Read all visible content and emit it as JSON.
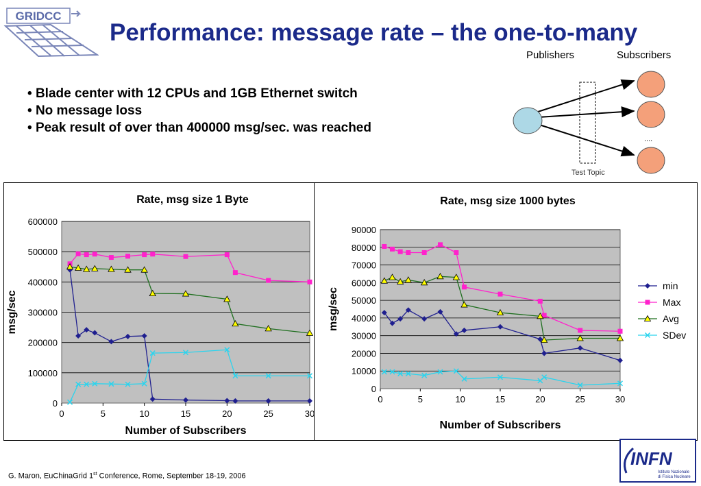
{
  "slide": {
    "title": "Performance: message rate – the one-to-many",
    "bullets": [
      "Blade center with 12 CPUs and 1GB Ethernet switch",
      "No message loss",
      "Peak result of over than 400000 msg/sec. was reached"
    ],
    "footer_pre": "G. Maron, EuChinaGrid 1",
    "footer_sup": "st",
    "footer_post": " Conference, Rome, September 18-19, 2006",
    "logo_text": "GRIDCC",
    "infn_logo": {
      "text": "INFN",
      "sub1": "Istituto Nazionale",
      "sub2": "di Fisica Nucleare"
    }
  },
  "diagram": {
    "publishers_label": "Publishers",
    "subscribers_label": "Subscribers",
    "topic_label": "Test Topic",
    "ellipsis": "....",
    "publisher_color": "#add8e6",
    "subscriber_color": "#f4a07a"
  },
  "colors": {
    "min": "#1f1f8f",
    "max": "#ff22cc",
    "avg": "#1f6f1f",
    "sdev": "#2ad4ee",
    "plot_bg": "#c0c0c0"
  },
  "legend": [
    {
      "key": "min",
      "label": "min"
    },
    {
      "key": "max",
      "label": "Max"
    },
    {
      "key": "avg",
      "label": "Avg"
    },
    {
      "key": "sdev",
      "label": "SDev"
    }
  ],
  "chart_data": [
    {
      "type": "line",
      "title": "Rate, msg size 1 Byte",
      "xlabel": "Number of Subscribers",
      "ylabel": "msg/sec",
      "xlim": [
        0,
        30
      ],
      "ylim": [
        0,
        600000
      ],
      "xticks": [
        "0",
        "5",
        "10",
        "15",
        "20",
        "25",
        "30"
      ],
      "yticks": [
        "0",
        "100000",
        "200000",
        "300000",
        "400000",
        "500000",
        "600000"
      ],
      "grid": true,
      "series": [
        {
          "name": "min",
          "x": [
            1,
            2,
            3,
            4,
            6,
            8,
            10,
            11,
            15,
            20,
            21,
            25,
            30
          ],
          "y": [
            440000,
            222000,
            242000,
            232000,
            203000,
            220000,
            222000,
            13000,
            10000,
            8000,
            7000,
            7000,
            7000
          ]
        },
        {
          "name": "Max",
          "x": [
            1,
            2,
            3,
            4,
            6,
            8,
            10,
            11,
            15,
            20,
            21,
            25,
            30
          ],
          "y": [
            460000,
            493000,
            490000,
            492000,
            481000,
            485000,
            490000,
            492000,
            484000,
            490000,
            431000,
            405000,
            400000
          ]
        },
        {
          "name": "Avg",
          "x": [
            1,
            2,
            3,
            4,
            6,
            8,
            10,
            11,
            15,
            20,
            21,
            25,
            30
          ],
          "y": [
            450000,
            446000,
            442000,
            444000,
            442000,
            440000,
            440000,
            362000,
            361000,
            343000,
            262000,
            246000,
            231000
          ]
        },
        {
          "name": "SDev",
          "x": [
            1,
            2,
            3,
            4,
            6,
            8,
            10,
            11,
            15,
            20,
            21,
            25,
            30
          ],
          "y": [
            3000,
            62000,
            62000,
            64000,
            63000,
            62000,
            64000,
            165000,
            167000,
            176000,
            90000,
            90000,
            90000
          ]
        }
      ]
    },
    {
      "type": "line",
      "title": "Rate, msg size 1000 bytes",
      "xlabel": "Number of Subscribers",
      "ylabel": "msg/sec",
      "xlim": [
        0,
        30
      ],
      "ylim": [
        0,
        90000
      ],
      "xticks": [
        "0",
        "5",
        "10",
        "15",
        "20",
        "25",
        "30"
      ],
      "yticks": [
        "0",
        "10000",
        "20000",
        "30000",
        "40000",
        "50000",
        "60000",
        "70000",
        "80000",
        "90000"
      ],
      "grid": true,
      "legend": "right",
      "series": [
        {
          "name": "min",
          "x": [
            0.5,
            1.5,
            2.5,
            3.5,
            5.5,
            7.5,
            9.5,
            10.5,
            15,
            20,
            20.5,
            25,
            30
          ],
          "y": [
            43000,
            37000,
            39500,
            44500,
            39500,
            43500,
            31000,
            33000,
            35000,
            28000,
            20000,
            23000,
            16000
          ]
        },
        {
          "name": "Max",
          "x": [
            0.5,
            1.5,
            2.5,
            3.5,
            5.5,
            7.5,
            9.5,
            10.5,
            15,
            20,
            20.5,
            25,
            30
          ],
          "y": [
            80500,
            79000,
            77500,
            77000,
            77000,
            81500,
            77000,
            57500,
            53500,
            49500,
            41500,
            33000,
            32500
          ]
        },
        {
          "name": "Avg",
          "x": [
            0.5,
            1.5,
            2.5,
            3.5,
            5.5,
            7.5,
            9.5,
            10.5,
            15,
            20,
            20.5,
            25,
            30
          ],
          "y": [
            61000,
            63000,
            60500,
            61500,
            60000,
            63500,
            63000,
            47500,
            43000,
            41000,
            27500,
            28500,
            28500
          ]
        },
        {
          "name": "SDev",
          "x": [
            0.5,
            1.5,
            2.5,
            3.5,
            5.5,
            7.5,
            9.5,
            10.5,
            15,
            20,
            20.5,
            25,
            30
          ],
          "y": [
            9500,
            9500,
            8500,
            8500,
            7500,
            9500,
            10000,
            5500,
            6500,
            4500,
            6500,
            2000,
            3000
          ]
        }
      ]
    }
  ]
}
